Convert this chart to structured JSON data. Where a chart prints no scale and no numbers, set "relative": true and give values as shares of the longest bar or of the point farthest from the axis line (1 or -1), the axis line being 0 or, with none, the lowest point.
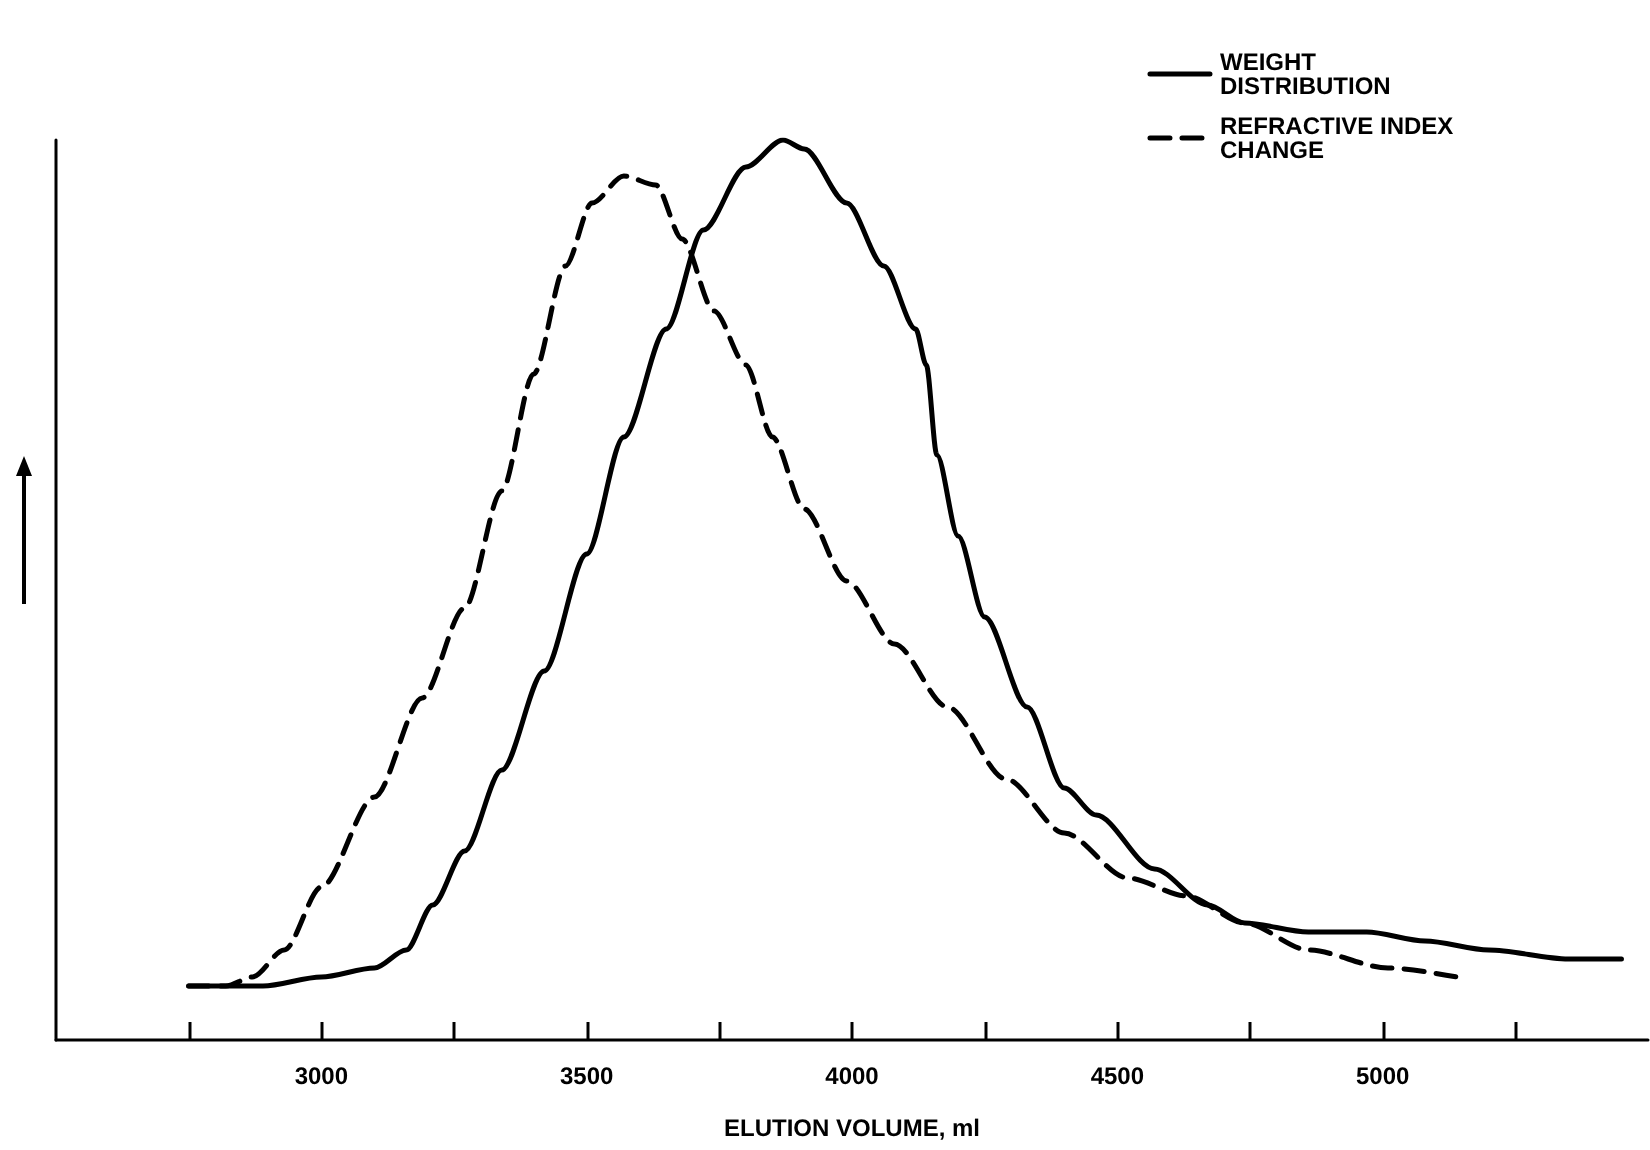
{
  "chart_data": {
    "type": "line",
    "relative": true,
    "xlabel": "ELUTION VOLUME, ml",
    "xlim": [
      2500,
      5500
    ],
    "xticks": [
      {
        "value": 2750,
        "label": null
      },
      3000,
      {
        "value": 3250,
        "label": null
      },
      3500,
      {
        "value": 3750,
        "label": null
      },
      4000,
      {
        "value": 4250,
        "label": null
      },
      4500,
      {
        "value": 4750,
        "label": null
      },
      5000,
      {
        "value": 5250,
        "label": null
      }
    ],
    "legend": "top right",
    "grid": false,
    "marker": "none",
    "series": [
      {
        "name": "WEIGHT DISTRIBUTION",
        "color": "#000000",
        "line_style": "solid",
        "x": [
          2750,
          2890,
          3000,
          3100,
          3160,
          3210,
          3270,
          3340,
          3420,
          3500,
          3570,
          3650,
          3720,
          3800,
          3870,
          3910,
          3990,
          4060,
          4120,
          4140,
          4160,
          4200,
          4250,
          4330,
          4400,
          4460,
          4570,
          4670,
          4740,
          4860,
          4970,
          5080,
          5200,
          5350,
          5450
        ],
        "values": [
          0.06,
          0.06,
          0.07,
          0.08,
          0.1,
          0.15,
          0.21,
          0.3,
          0.41,
          0.54,
          0.67,
          0.79,
          0.9,
          0.97,
          1.0,
          0.99,
          0.93,
          0.86,
          0.79,
          0.75,
          0.65,
          0.56,
          0.47,
          0.37,
          0.28,
          0.25,
          0.19,
          0.15,
          0.13,
          0.12,
          0.12,
          0.11,
          0.1,
          0.09,
          0.09
        ]
      },
      {
        "name": "REFRACTIVE INDEX CHANGE",
        "color": "#000000",
        "line_style": "dashed",
        "x": [
          2750,
          2820,
          2870,
          2930,
          3000,
          3100,
          3190,
          3270,
          3340,
          3400,
          3460,
          3510,
          3570,
          3630,
          3680,
          3740,
          3800,
          3850,
          3910,
          3990,
          4080,
          4180,
          4290,
          4400,
          4520,
          4630,
          4740,
          4860,
          5010,
          5140
        ],
        "values": [
          0.06,
          0.06,
          0.07,
          0.1,
          0.17,
          0.27,
          0.38,
          0.48,
          0.61,
          0.74,
          0.86,
          0.93,
          0.96,
          0.95,
          0.89,
          0.81,
          0.75,
          0.67,
          0.59,
          0.51,
          0.44,
          0.37,
          0.29,
          0.23,
          0.18,
          0.16,
          0.13,
          0.1,
          0.08,
          0.07
        ]
      }
    ]
  }
}
